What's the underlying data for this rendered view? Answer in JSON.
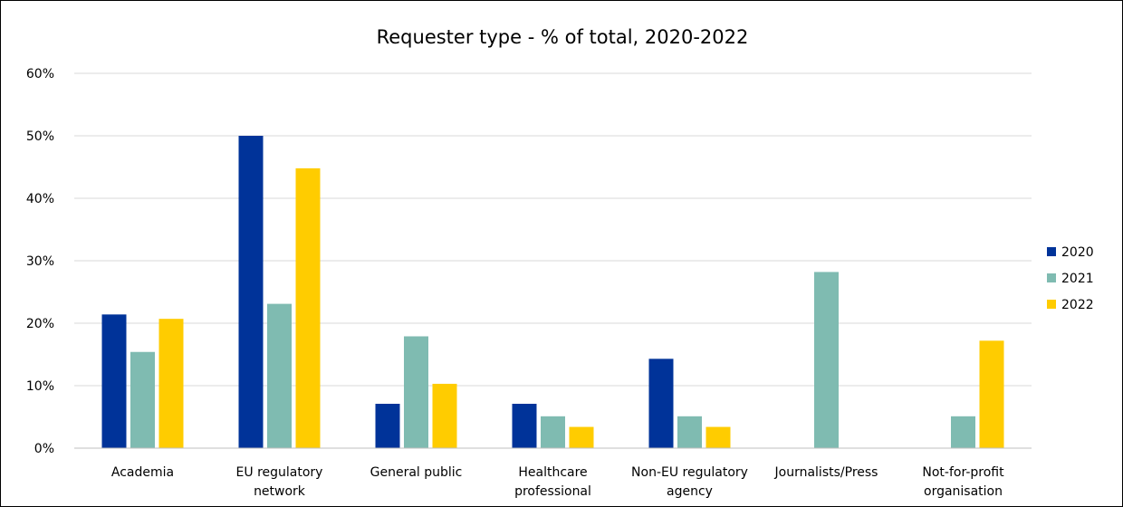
{
  "chart_data": {
    "type": "bar",
    "title": "Requester type - % of total, 2020-2022",
    "xlabel": "",
    "ylabel": "",
    "categories": [
      [
        "Academia"
      ],
      [
        "EU regulatory",
        "network"
      ],
      [
        "General public"
      ],
      [
        "Healthcare",
        "professional"
      ],
      [
        "Non-EU regulatory",
        "agency"
      ],
      [
        "Journalists/Press"
      ],
      [
        "Not-for-profit",
        "organisation"
      ]
    ],
    "series": [
      {
        "name": "2020",
        "color": "#003399",
        "values": [
          21.4,
          50.0,
          7.1,
          7.1,
          14.3,
          0,
          0
        ]
      },
      {
        "name": "2021",
        "color": "#7FBBB1",
        "values": [
          15.4,
          23.1,
          17.9,
          5.1,
          5.1,
          28.2,
          5.1
        ]
      },
      {
        "name": "2022",
        "color": "#FFCC00",
        "values": [
          20.7,
          44.8,
          10.3,
          3.4,
          3.4,
          0,
          17.2
        ]
      }
    ],
    "ylim": [
      0,
      60
    ],
    "yticks": [
      {
        "value": 0,
        "label": "0%"
      },
      {
        "value": 10,
        "label": "10%"
      },
      {
        "value": 20,
        "label": "20%"
      },
      {
        "value": 30,
        "label": "30%"
      },
      {
        "value": 40,
        "label": "40%"
      },
      {
        "value": 50,
        "label": "50%"
      },
      {
        "value": 60,
        "label": "60%"
      }
    ],
    "grid": true,
    "legend_position": "right"
  }
}
